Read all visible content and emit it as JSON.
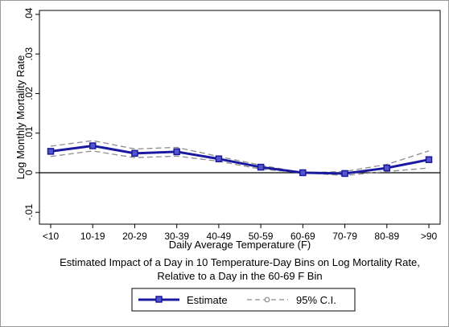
{
  "chart_data": {
    "type": "line",
    "title": "",
    "xlabel": "Daily Average Temperature (F)",
    "ylabel": "Log Monthly Mortality Rate",
    "note": [
      "Estimated Impact of a Day in 10 Temperature-Day Bins on Log Mortality Rate,",
      "Relative to a Day in the 60-69 F Bin"
    ],
    "categories": [
      "<10",
      "10-19",
      "20-29",
      "30-39",
      "40-49",
      "50-59",
      "60-69",
      "70-79",
      "80-89",
      ">90"
    ],
    "yticks": [
      -0.01,
      0,
      0.01,
      0.02,
      0.03,
      0.04
    ],
    "ytick_labels": [
      "-.01",
      "0",
      ".01",
      ".02",
      ".03",
      ".04"
    ],
    "ylim": [
      -0.013,
      0.041
    ],
    "grid": false,
    "zero_line": true,
    "legend_position": "bottom",
    "series": [
      {
        "name": "Estimate",
        "color": "#1a1aa0",
        "marker": "square",
        "values": [
          0.0054,
          0.0068,
          0.0049,
          0.0053,
          0.0035,
          0.0014,
          0.0,
          -0.0002,
          0.0012,
          0.0033
        ]
      },
      {
        "name": "95% C.I.",
        "color": "#8c8c8c",
        "marker": "circle",
        "dash": true,
        "upper": [
          0.0067,
          0.0081,
          0.006,
          0.0064,
          0.0041,
          0.0019,
          0.0,
          0.0003,
          0.0021,
          0.0055
        ],
        "lower": [
          0.0041,
          0.0055,
          0.0038,
          0.0042,
          0.0029,
          0.0009,
          0.0,
          -0.0007,
          0.0003,
          0.0012
        ]
      }
    ]
  }
}
